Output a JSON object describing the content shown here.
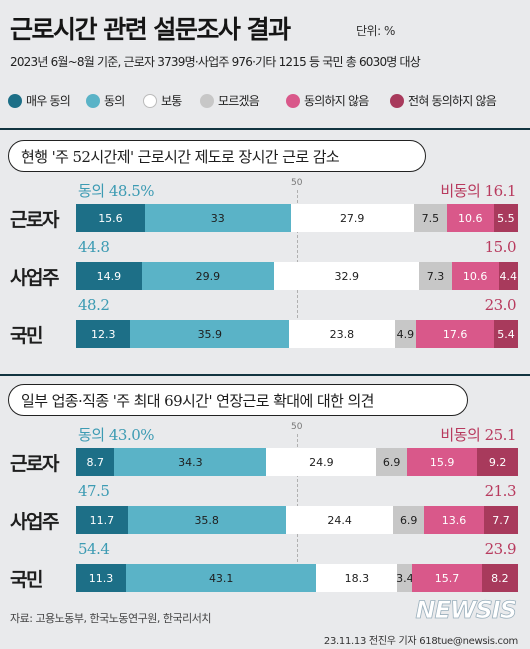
{
  "header": {
    "title": "근로시간 관련 설문조사 결과",
    "unit": "단위: %",
    "subtitle": "2023년 6월~8월 기준, 근로자 3739명·사업주 976·기타 1215 등 국민 총 6030명 대상"
  },
  "legend": [
    {
      "label": "매우 동의",
      "color": "#1d6f87"
    },
    {
      "label": "동의",
      "color": "#5ab3c7"
    },
    {
      "label": "보통",
      "color": "#ffffff"
    },
    {
      "label": "모르겠음",
      "color": "#c7c7c7"
    },
    {
      "label": "동의하지 않음",
      "color": "#d9588a"
    },
    {
      "label": "전혀 동의하지 않음",
      "color": "#a83a5c"
    }
  ],
  "chart_data": [
    {
      "type": "bar",
      "stacked": true,
      "orientation": "horizontal",
      "title": "현행 '주 52시간제' 근로시간 제도로 장시간 근로 감소",
      "midpoint_label": "50",
      "categories": [
        "근로자",
        "사업주",
        "국민"
      ],
      "series": [
        {
          "name": "매우 동의",
          "values": [
            15.6,
            14.9,
            12.3
          ]
        },
        {
          "name": "동의",
          "values": [
            33,
            29.9,
            35.9
          ]
        },
        {
          "name": "보통",
          "values": [
            27.9,
            32.9,
            23.8
          ]
        },
        {
          "name": "모르겠음",
          "values": [
            7.5,
            7.3,
            4.9
          ]
        },
        {
          "name": "동의하지 않음",
          "values": [
            10.6,
            10.6,
            17.6
          ]
        },
        {
          "name": "전혀 동의하지 않음",
          "values": [
            5.5,
            4.4,
            5.4
          ]
        }
      ],
      "agree_labels": [
        "동의 48.5%",
        "44.8",
        "48.2"
      ],
      "disagree_labels": [
        "비동의 16.1",
        "15.0",
        "23.0"
      ]
    },
    {
      "type": "bar",
      "stacked": true,
      "orientation": "horizontal",
      "title": "일부 업종·직종 '주 최대 69시간' 연장근로 확대에 대한 의견",
      "midpoint_label": "50",
      "categories": [
        "근로자",
        "사업주",
        "국민"
      ],
      "series": [
        {
          "name": "매우 동의",
          "values": [
            8.7,
            11.7,
            11.3
          ]
        },
        {
          "name": "동의",
          "values": [
            34.3,
            35.8,
            43.1
          ]
        },
        {
          "name": "보통",
          "values": [
            24.9,
            24.4,
            18.3
          ]
        },
        {
          "name": "모르겠음",
          "values": [
            6.9,
            6.9,
            3.4
          ]
        },
        {
          "name": "동의하지 않음",
          "values": [
            15.9,
            13.6,
            15.7
          ]
        },
        {
          "name": "전혀 동의하지 않음",
          "values": [
            9.2,
            7.7,
            8.2
          ]
        }
      ],
      "agree_labels": [
        "동의 43.0%",
        "47.5",
        "54.4"
      ],
      "disagree_labels": [
        "비동의 25.1",
        "21.3",
        "23.9"
      ]
    }
  ],
  "footer": {
    "source": "자료: 고용노동부, 한국노동연구원, 한국리서치",
    "credit": "23.11.13 전진우 기자 618tue@newsis.com",
    "logo": "NEWSIS"
  }
}
